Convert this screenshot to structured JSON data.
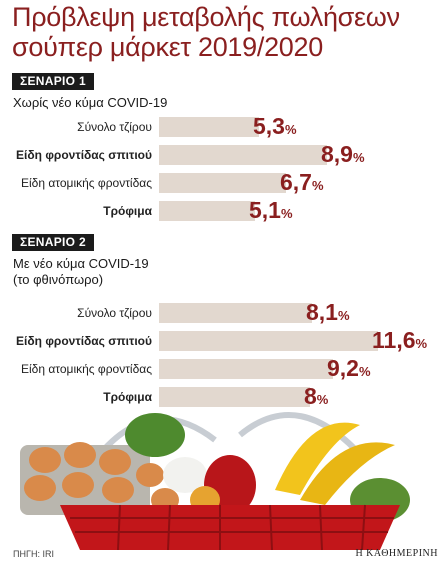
{
  "title_line1": "Πρόβλεψη μεταβολής πωλήσεων",
  "title_line2": "σούπερ μάρκετ 2019/2020",
  "percent_sign": "%",
  "source": "ΠΗΓΗ: IRI",
  "publisher": "Η ΚΑΘΗΜΕΡΙΝΗ",
  "colors": {
    "title": "#8a1f1f",
    "bar": "#e2d8cf",
    "value": "#8a1f1f",
    "badge": "#1b1b1b"
  },
  "chart_data": [
    {
      "type": "bar",
      "orientation": "horizontal",
      "badge": "ΣΕΝΑΡΙΟ 1",
      "caption_lines": [
        "Χωρίς νέο κύμα COVID-19"
      ],
      "categories": [
        "Σύνολο τζίρου",
        "Είδη φροντίδας σπιτιού",
        "Είδη ατομικής φροντίδας",
        "Τρόφιμα"
      ],
      "bold_categories": [
        false,
        true,
        false,
        true
      ],
      "values": [
        5.3,
        8.9,
        6.7,
        5.1
      ],
      "value_labels": [
        "5,3",
        "8,9",
        "6,7",
        "5,1"
      ],
      "xlim": [
        0,
        12
      ]
    },
    {
      "type": "bar",
      "orientation": "horizontal",
      "badge": "ΣΕΝΑΡΙΟ 2",
      "caption_lines": [
        "Με νέο κύμα COVID-19",
        "(το φθινόπωρο)"
      ],
      "categories": [
        "Σύνολο τζίρου",
        "Είδη φροντίδας σπιτιού",
        "Είδη ατομικής φροντίδας",
        "Τρόφιμα"
      ],
      "bold_categories": [
        false,
        true,
        false,
        true
      ],
      "values": [
        8.1,
        11.6,
        9.2,
        8
      ],
      "value_labels": [
        "8,1",
        "11,6",
        "9,2",
        "8"
      ],
      "xlim": [
        0,
        12
      ]
    }
  ]
}
